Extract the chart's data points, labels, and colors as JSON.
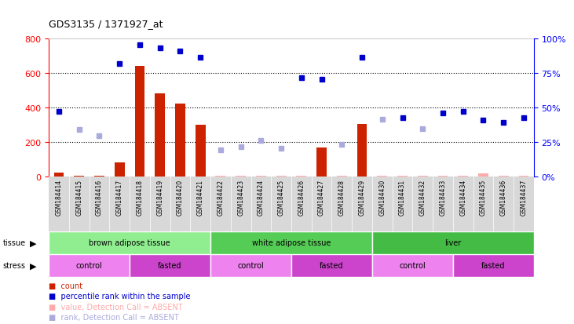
{
  "title": "GDS3135 / 1371927_at",
  "samples": [
    "GSM184414",
    "GSM184415",
    "GSM184416",
    "GSM184417",
    "GSM184418",
    "GSM184419",
    "GSM184420",
    "GSM184421",
    "GSM184422",
    "GSM184423",
    "GSM184424",
    "GSM184425",
    "GSM184426",
    "GSM184427",
    "GSM184428",
    "GSM184429",
    "GSM184430",
    "GSM184431",
    "GSM184432",
    "GSM184433",
    "GSM184434",
    "GSM184435",
    "GSM184436",
    "GSM184437"
  ],
  "count_values": [
    20,
    5,
    5,
    80,
    640,
    480,
    420,
    300,
    5,
    5,
    5,
    5,
    5,
    165,
    5,
    305,
    5,
    5,
    5,
    5,
    5,
    15,
    5,
    5
  ],
  "count_absent": [
    false,
    false,
    false,
    false,
    false,
    false,
    false,
    false,
    true,
    true,
    true,
    true,
    true,
    false,
    true,
    false,
    true,
    true,
    true,
    true,
    true,
    true,
    true,
    true
  ],
  "rank_values": [
    375,
    270,
    235,
    655,
    760,
    745,
    725,
    690,
    155,
    170,
    207,
    162,
    570,
    562,
    183,
    690,
    330,
    340,
    275,
    365,
    375,
    325,
    310,
    338
  ],
  "rank_absent": [
    false,
    true,
    true,
    false,
    false,
    false,
    false,
    false,
    true,
    true,
    true,
    true,
    false,
    false,
    true,
    false,
    true,
    false,
    true,
    false,
    false,
    false,
    false,
    false
  ],
  "ylim_left": [
    0,
    800
  ],
  "ylim_right": [
    0,
    100
  ],
  "yticks_left": [
    0,
    200,
    400,
    600,
    800
  ],
  "yticks_right": [
    0,
    25,
    50,
    75,
    100
  ],
  "ytick_labels_right": [
    "0%",
    "25%",
    "50%",
    "75%",
    "100%"
  ],
  "grid_lines": [
    200,
    400,
    600
  ],
  "tissue_groups": [
    {
      "label": "brown adipose tissue",
      "start": 0,
      "end": 8,
      "color": "#90EE90"
    },
    {
      "label": "white adipose tissue",
      "start": 8,
      "end": 16,
      "color": "#55CC55"
    },
    {
      "label": "liver",
      "start": 16,
      "end": 24,
      "color": "#44BB44"
    }
  ],
  "stress_groups": [
    {
      "label": "control",
      "start": 0,
      "end": 4,
      "color": "#EE82EE"
    },
    {
      "label": "fasted",
      "start": 4,
      "end": 8,
      "color": "#CC44CC"
    },
    {
      "label": "control",
      "start": 8,
      "end": 12,
      "color": "#EE82EE"
    },
    {
      "label": "fasted",
      "start": 12,
      "end": 16,
      "color": "#CC44CC"
    },
    {
      "label": "control",
      "start": 16,
      "end": 20,
      "color": "#EE82EE"
    },
    {
      "label": "fasted",
      "start": 20,
      "end": 24,
      "color": "#CC44CC"
    }
  ],
  "bar_color": "#CC2200",
  "bar_absent_color": "#FFAAAA",
  "rank_color": "#0000CC",
  "rank_absent_color": "#AAAADD",
  "legend_items": [
    {
      "label": "count",
      "color": "#CC2200"
    },
    {
      "label": "percentile rank within the sample",
      "color": "#0000CC"
    },
    {
      "label": "value, Detection Call = ABSENT",
      "color": "#FFAAAA"
    },
    {
      "label": "rank, Detection Call = ABSENT",
      "color": "#AAAADD"
    }
  ]
}
